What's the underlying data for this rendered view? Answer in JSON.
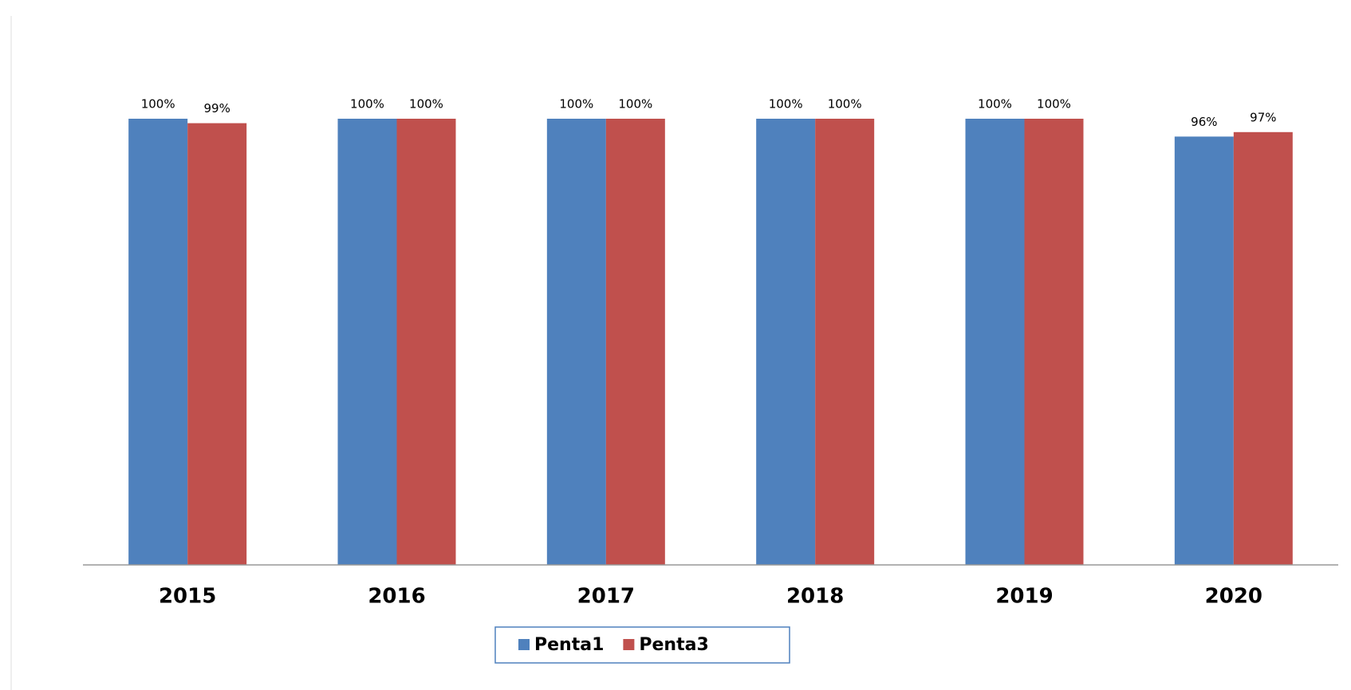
{
  "chart_data": {
    "type": "bar",
    "categories": [
      "2015",
      "2016",
      "2017",
      "2018",
      "2019",
      "2020"
    ],
    "series": [
      {
        "name": "Penta1",
        "color": "#4f81bd",
        "values": [
          100,
          100,
          100,
          100,
          100,
          96
        ],
        "value_labels": [
          "100%",
          "100%",
          "100%",
          "100%",
          "100%",
          "96%"
        ]
      },
      {
        "name": "Penta3",
        "color": "#c0504d",
        "values": [
          99,
          100,
          100,
          100,
          100,
          97
        ],
        "value_labels": [
          "99%",
          "100%",
          "100%",
          "100%",
          "100%",
          "97%"
        ]
      }
    ],
    "ylim": [
      0,
      120
    ],
    "legend": "bottom"
  }
}
